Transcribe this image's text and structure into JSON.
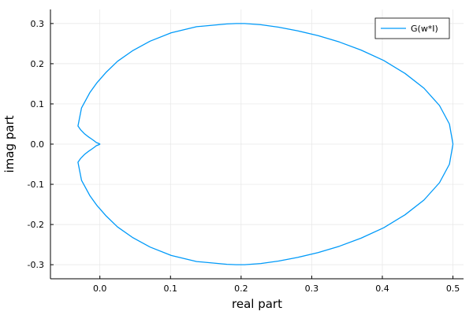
{
  "chart_data": {
    "type": "line",
    "xlabel": "real part",
    "ylabel": "imag part",
    "xlim": [
      -0.07,
      0.515
    ],
    "ylim": [
      -0.335,
      0.335
    ],
    "xticks": [
      0.0,
      0.1,
      0.2,
      0.3,
      0.4,
      0.5
    ],
    "xtick_labels": [
      "0.0",
      "0.1",
      "0.2",
      "0.3",
      "0.4",
      "0.5"
    ],
    "yticks": [
      -0.3,
      -0.2,
      -0.1,
      0.0,
      0.1,
      0.2,
      0.3
    ],
    "ytick_labels": [
      "-0.3",
      "-0.2",
      "-0.1",
      "0.0",
      "0.1",
      "0.2",
      "0.3"
    ],
    "grid": true,
    "legend_position": "top-right",
    "series": [
      {
        "name": "G(w*I)",
        "color": "#009af9",
        "x": [
          0.5,
          0.495,
          0.481,
          0.459,
          0.432,
          0.402,
          0.37,
          0.339,
          0.309,
          0.28,
          0.253,
          0.228,
          0.205,
          0.193,
          0.18,
          0.137,
          0.101,
          0.071,
          0.046,
          0.025,
          0.009,
          -0.004,
          -0.014,
          -0.026,
          -0.031,
          -0.027,
          -0.022,
          -0.017,
          -0.012,
          -0.008,
          -0.005,
          -0.002,
          0.0,
          -0.002,
          -0.005,
          -0.008,
          -0.012,
          -0.017,
          -0.022,
          -0.027,
          -0.031,
          -0.026,
          -0.014,
          -0.004,
          0.009,
          0.025,
          0.046,
          0.071,
          0.101,
          0.137,
          0.18,
          0.193,
          0.205,
          0.228,
          0.253,
          0.28,
          0.309,
          0.339,
          0.37,
          0.402,
          0.432,
          0.459,
          0.481,
          0.495,
          0.5
        ],
        "y": [
          0.0,
          0.05,
          0.096,
          0.139,
          0.176,
          0.208,
          0.234,
          0.254,
          0.27,
          0.282,
          0.291,
          0.297,
          0.3,
          0.3,
          0.299,
          0.292,
          0.277,
          0.256,
          0.232,
          0.206,
          0.179,
          0.153,
          0.129,
          0.09,
          0.045,
          0.035,
          0.026,
          0.019,
          0.013,
          0.008,
          0.004,
          0.002,
          0.0,
          -0.002,
          -0.004,
          -0.008,
          -0.013,
          -0.019,
          -0.026,
          -0.035,
          -0.045,
          -0.09,
          -0.129,
          -0.153,
          -0.179,
          -0.206,
          -0.232,
          -0.256,
          -0.277,
          -0.292,
          -0.299,
          -0.3,
          -0.3,
          -0.297,
          -0.291,
          -0.282,
          -0.27,
          -0.254,
          -0.234,
          -0.208,
          -0.176,
          -0.139,
          -0.096,
          -0.05,
          0.0
        ]
      }
    ]
  }
}
